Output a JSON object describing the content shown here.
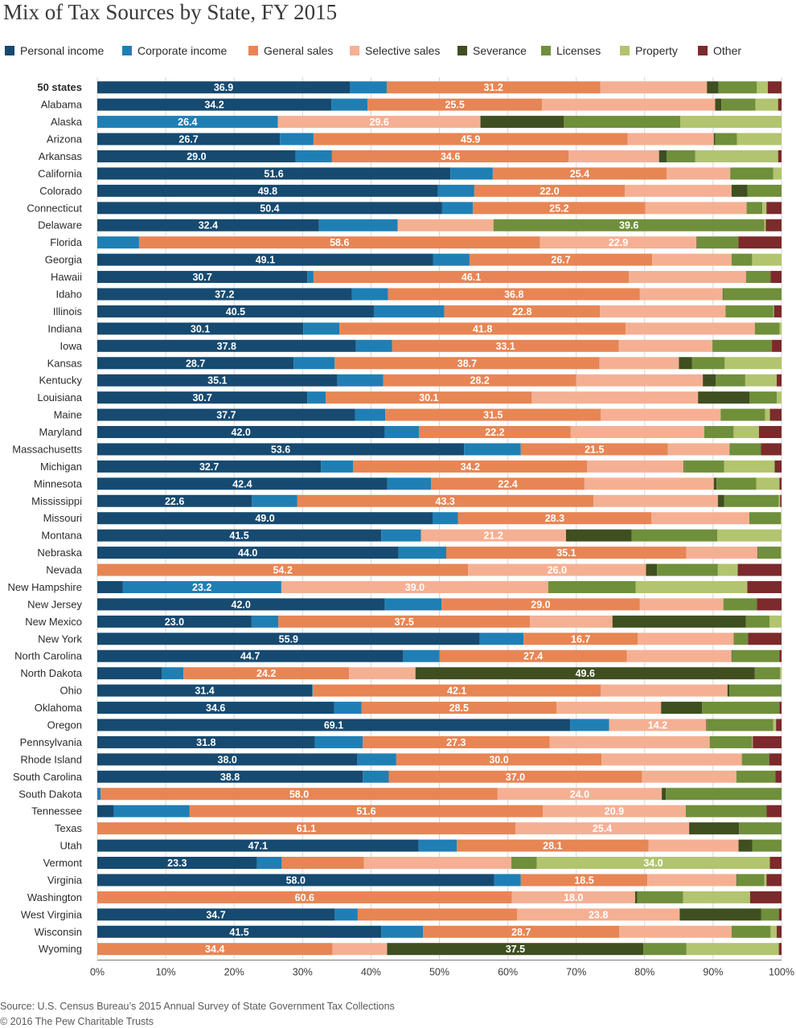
{
  "title": "Mix of Tax Sources by State, FY 2015",
  "legend": [
    {
      "label": "Personal income",
      "color": "#164a70"
    },
    {
      "label": "Corporate income",
      "color": "#1f7fb4"
    },
    {
      "label": "General sales",
      "color": "#e88554"
    },
    {
      "label": "Selective sales",
      "color": "#f5b093"
    },
    {
      "label": "Severance",
      "color": "#3f4f20"
    },
    {
      "label": "Licenses",
      "color": "#6f8f3b"
    },
    {
      "label": "Property",
      "color": "#b2c46e"
    },
    {
      "label": "Other",
      "color": "#7c2a2b"
    }
  ],
  "footer": {
    "source": "Source: U.S. Census Bureau’s 2015 Annual Survey of State Government Tax Collections",
    "copyright": "© 2016 The Pew Charitable Trusts"
  },
  "chart_data": {
    "type": "bar",
    "orientation": "horizontal",
    "stacked": true,
    "title": "Mix of Tax Sources by State, FY 2015",
    "xlim": [
      0,
      100
    ],
    "xticks": [
      "0%",
      "10%",
      "20%",
      "30%",
      "40%",
      "50%",
      "60%",
      "70%",
      "80%",
      "90%",
      "100%"
    ],
    "grid": true,
    "legend_position": "top",
    "series_names": [
      "Personal income",
      "Corporate income",
      "General sales",
      "Selective sales",
      "Severance",
      "Licenses",
      "Property",
      "Other"
    ],
    "categories": [
      "50 states",
      "Alabama",
      "Alaska",
      "Arizona",
      "Arkansas",
      "California",
      "Colorado",
      "Connecticut",
      "Delaware",
      "Florida",
      "Georgia",
      "Hawaii",
      "Idaho",
      "Illinois",
      "Indiana",
      "Iowa",
      "Kansas",
      "Kentucky",
      "Louisiana",
      "Maine",
      "Maryland",
      "Massachusetts",
      "Michigan",
      "Minnesota",
      "Mississippi",
      "Missouri",
      "Montana",
      "Nebraska",
      "Nevada",
      "New Hampshire",
      "New Jersey",
      "New Mexico",
      "New York",
      "North Carolina",
      "North Dakota",
      "Ohio",
      "Oklahoma",
      "Oregon",
      "Pennsylvania",
      "Rhode Island",
      "South Carolina",
      "South Dakota",
      "Tennessee",
      "Texas",
      "Utah",
      "Vermont",
      "Virginia",
      "Washington",
      "West Virginia",
      "Wisconsin",
      "Wyoming"
    ],
    "values": [
      [
        36.9,
        5.4,
        31.2,
        15.6,
        1.7,
        5.6,
        1.6,
        2.0
      ],
      [
        34.2,
        5.3,
        25.5,
        25.3,
        0.9,
        5.0,
        3.3,
        0.5
      ],
      [
        0,
        26.4,
        0,
        29.6,
        12.2,
        17.0,
        14.8,
        0
      ],
      [
        26.7,
        4.9,
        45.9,
        12.6,
        0.2,
        3.2,
        6.5,
        0.0
      ],
      [
        29.0,
        5.3,
        34.6,
        13.2,
        1.1,
        4.2,
        12.1,
        0.5
      ],
      [
        51.6,
        6.2,
        25.4,
        9.3,
        0.0,
        6.3,
        1.2,
        0.0
      ],
      [
        49.8,
        5.3,
        22.0,
        15.6,
        2.3,
        5.0,
        0.0,
        0.0
      ],
      [
        50.4,
        4.5,
        25.2,
        14.8,
        0.0,
        2.3,
        0.6,
        2.2
      ],
      [
        32.4,
        11.5,
        0,
        14.0,
        0,
        39.6,
        0.2,
        2.3
      ],
      [
        0,
        6.1,
        58.6,
        22.9,
        0.1,
        6.0,
        0,
        6.3
      ],
      [
        49.1,
        5.3,
        26.7,
        11.6,
        0,
        3.0,
        4.3,
        0
      ],
      [
        30.7,
        0.9,
        46.1,
        17.1,
        0,
        3.6,
        0,
        1.6
      ],
      [
        37.2,
        5.3,
        36.8,
        12.1,
        0.1,
        8.5,
        0,
        0
      ],
      [
        40.5,
        10.3,
        22.8,
        18.4,
        0,
        7.0,
        0.1,
        1.1
      ],
      [
        30.1,
        5.3,
        41.8,
        18.9,
        0,
        3.6,
        0.3,
        0
      ],
      [
        37.8,
        5.3,
        33.1,
        13.7,
        0,
        8.7,
        0,
        1.4
      ],
      [
        28.7,
        6.0,
        38.7,
        11.6,
        1.9,
        4.8,
        8.3,
        0
      ],
      [
        35.1,
        6.7,
        28.2,
        18.5,
        1.9,
        4.3,
        4.6,
        0.7
      ],
      [
        30.7,
        2.7,
        30.1,
        24.3,
        7.5,
        4.0,
        0.7,
        0
      ],
      [
        37.7,
        4.4,
        31.5,
        17.5,
        0,
        6.5,
        0.7,
        1.7
      ],
      [
        42.0,
        5.0,
        22.2,
        19.5,
        0,
        4.3,
        3.7,
        3.3
      ],
      [
        53.6,
        8.3,
        21.5,
        9.0,
        0,
        4.6,
        0,
        3.0
      ],
      [
        32.7,
        4.7,
        34.2,
        14.1,
        0.1,
        5.8,
        7.4,
        1.0
      ],
      [
        42.4,
        6.4,
        22.4,
        18.9,
        0.4,
        5.8,
        3.4,
        0.3
      ],
      [
        22.6,
        6.6,
        43.3,
        18.2,
        0.9,
        8.0,
        0.2,
        0.2
      ],
      [
        49.0,
        3.7,
        28.3,
        14.3,
        0,
        4.6,
        0.1,
        0
      ],
      [
        41.5,
        5.8,
        0,
        21.2,
        9.6,
        12.5,
        9.4,
        0
      ],
      [
        44.0,
        7.0,
        35.1,
        10.4,
        0.1,
        3.3,
        0.1,
        0
      ],
      [
        0,
        0,
        54.2,
        26.0,
        1.6,
        8.9,
        2.9,
        6.4
      ],
      [
        3.7,
        23.2,
        0,
        39.0,
        0,
        12.8,
        16.3,
        5.0
      ],
      [
        42.0,
        8.3,
        29.0,
        12.2,
        0,
        4.9,
        0,
        3.6
      ],
      [
        23.0,
        4.0,
        37.5,
        12.3,
        19.9,
        3.5,
        1.8,
        0
      ],
      [
        55.9,
        6.4,
        16.7,
        14.0,
        0,
        2.1,
        0,
        4.9
      ],
      [
        44.7,
        5.3,
        27.4,
        15.3,
        0.1,
        6.9,
        0,
        0.3
      ],
      [
        9.4,
        3.2,
        24.2,
        9.7,
        49.6,
        3.7,
        0.2,
        0
      ],
      [
        31.4,
        0.1,
        42.1,
        18.5,
        0.3,
        7.6,
        0,
        0
      ],
      [
        34.6,
        4.0,
        28.5,
        15.3,
        6.0,
        11.3,
        0,
        0.3
      ],
      [
        69.1,
        5.7,
        0,
        14.2,
        0.1,
        9.7,
        0.4,
        0.8
      ],
      [
        31.8,
        7.0,
        27.3,
        23.4,
        0,
        6.2,
        0.1,
        4.2
      ],
      [
        38.0,
        5.7,
        30.0,
        20.5,
        0,
        4.0,
        0,
        1.8
      ],
      [
        38.8,
        3.8,
        37.0,
        13.8,
        0,
        5.7,
        0,
        0.9
      ],
      [
        0,
        0.5,
        58.0,
        24.0,
        0.6,
        16.9,
        0,
        0
      ],
      [
        2.4,
        11.1,
        51.6,
        20.9,
        0,
        11.8,
        0,
        2.2
      ],
      [
        0,
        0,
        61.1,
        25.4,
        7.3,
        6.2,
        0,
        0
      ],
      [
        47.1,
        5.6,
        28.1,
        13.2,
        2.0,
        4.3,
        0,
        0
      ],
      [
        23.3,
        3.6,
        12.0,
        21.5,
        0,
        3.7,
        34.0,
        1.7
      ],
      [
        58.0,
        3.9,
        18.5,
        13.0,
        0.1,
        4.0,
        0.3,
        2.2
      ],
      [
        0,
        0,
        60.6,
        18.0,
        0.3,
        6.7,
        9.8,
        4.6
      ],
      [
        34.7,
        3.4,
        23.3,
        23.8,
        11.9,
        2.6,
        0,
        0.4
      ],
      [
        41.5,
        6.1,
        28.7,
        16.4,
        0,
        5.7,
        0.9,
        0.7
      ],
      [
        0,
        0,
        34.4,
        8.0,
        37.5,
        6.3,
        13.5,
        0.4
      ]
    ],
    "shown_labels": [
      [
        0,
        2
      ],
      [
        0,
        2
      ],
      [
        1,
        3
      ],
      [
        0,
        2
      ],
      [
        0,
        2
      ],
      [
        0,
        2
      ],
      [
        0,
        2
      ],
      [
        0,
        2
      ],
      [
        0,
        5
      ],
      [
        2,
        3
      ],
      [
        0,
        2
      ],
      [
        0,
        2
      ],
      [
        0,
        2
      ],
      [
        0,
        2
      ],
      [
        0,
        2
      ],
      [
        0,
        2
      ],
      [
        0,
        2
      ],
      [
        0,
        2
      ],
      [
        0,
        2
      ],
      [
        0,
        2
      ],
      [
        0,
        2
      ],
      [
        0,
        2
      ],
      [
        0,
        2
      ],
      [
        0,
        2
      ],
      [
        0,
        2
      ],
      [
        0,
        2
      ],
      [
        0,
        3
      ],
      [
        0,
        2
      ],
      [
        2,
        3
      ],
      [
        1,
        3
      ],
      [
        0,
        2
      ],
      [
        0,
        2
      ],
      [
        0,
        2
      ],
      [
        0,
        2
      ],
      [
        2,
        4
      ],
      [
        0,
        2
      ],
      [
        0,
        2
      ],
      [
        0,
        3
      ],
      [
        0,
        2
      ],
      [
        0,
        2
      ],
      [
        0,
        2
      ],
      [
        2,
        3
      ],
      [
        2,
        3
      ],
      [
        2,
        3
      ],
      [
        0,
        2
      ],
      [
        0,
        6
      ],
      [
        0,
        2
      ],
      [
        2,
        3
      ],
      [
        0,
        3
      ],
      [
        0,
        2
      ],
      [
        2,
        4
      ]
    ]
  }
}
